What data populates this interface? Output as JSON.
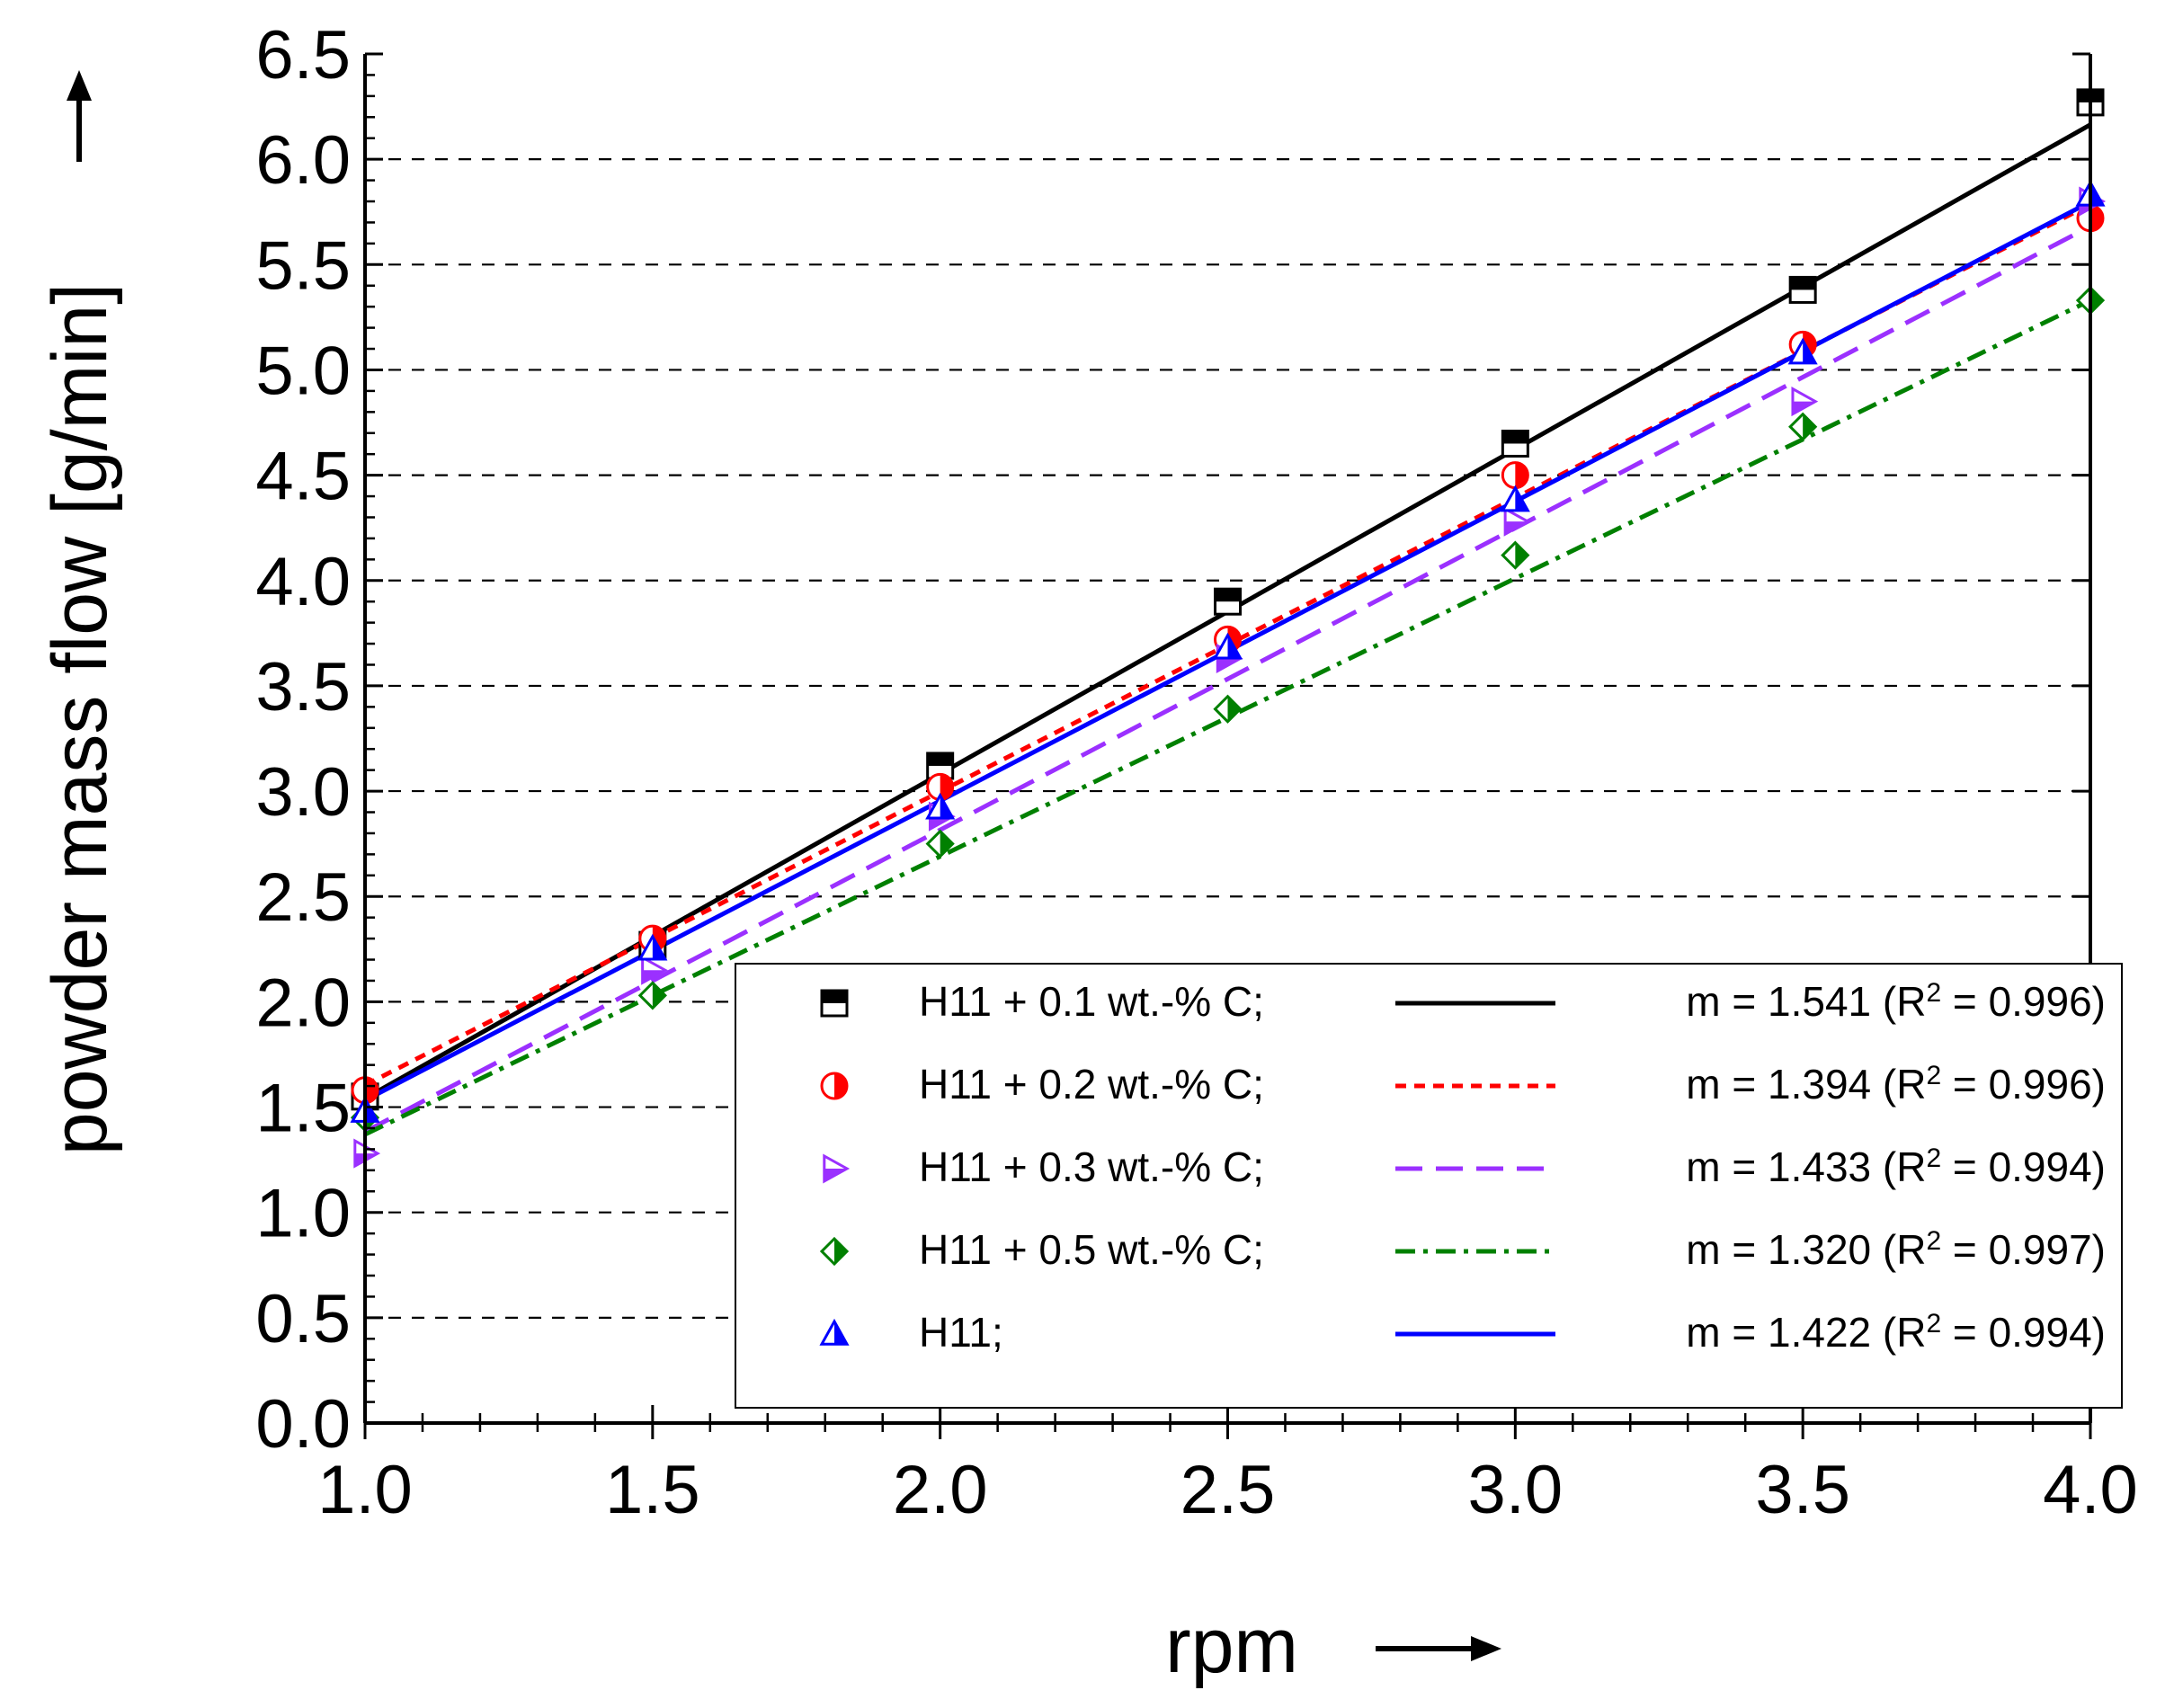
{
  "chart_data": {
    "type": "scatter",
    "xlabel": "rpm",
    "ylabel": "powder mass flow [g/min]",
    "xlim": [
      1.0,
      4.0
    ],
    "ylim": [
      0.0,
      6.5
    ],
    "xticks": [
      "1.0",
      "1.5",
      "2.0",
      "2.5",
      "3.0",
      "3.5",
      "4.0"
    ],
    "yticks": [
      "0.0",
      "0.5",
      "1.0",
      "1.5",
      "2.0",
      "2.5",
      "3.0",
      "3.5",
      "4.0",
      "4.5",
      "5.0",
      "5.5",
      "6.0",
      "6.5"
    ],
    "grid": "horizontal dashed",
    "legend_position": "bottom-right",
    "series": [
      {
        "name": "H11 + 0.1 wt.-% C;",
        "marker": "square-top-filled",
        "line_style": "solid",
        "color": "#000000",
        "fit_label": "m = 1.541 (R",
        "r2_text": " = 0.996)",
        "fit": {
          "slope": 1.541,
          "intercept": 0.0
        },
        "x": [
          1.0,
          1.5,
          2.0,
          2.5,
          3.0,
          3.5,
          4.0
        ],
        "y": [
          1.55,
          2.27,
          3.12,
          3.9,
          4.65,
          5.38,
          6.27
        ]
      },
      {
        "name": "H11 + 0.2 wt.-% C;",
        "marker": "circle-right-filled",
        "line_style": "dashed-short",
        "color": "#ff0000",
        "fit_label": "m = 1.394 (R",
        "r2_text": " = 0.996)",
        "fit": {
          "slope": 1.394,
          "intercept": 0.21
        },
        "x": [
          1.0,
          1.5,
          2.0,
          2.5,
          3.0,
          3.5,
          4.0
        ],
        "y": [
          1.58,
          2.3,
          3.02,
          3.72,
          4.5,
          5.12,
          5.72
        ]
      },
      {
        "name": "H11 + 0.3 wt.-% C;",
        "marker": "triangle-right-filled",
        "line_style": "dashed-long",
        "color": "#9b30ff",
        "fit_label": "m = 1.433 (R",
        "r2_text": " = 0.994)",
        "fit": {
          "slope": 1.433,
          "intercept": -0.05
        },
        "x": [
          1.0,
          1.5,
          2.0,
          2.5,
          3.0,
          3.5,
          4.0
        ],
        "y": [
          1.28,
          2.15,
          2.88,
          3.63,
          4.28,
          4.85,
          5.8
        ]
      },
      {
        "name": "H11 +  0.5 wt.-% C;",
        "marker": "diamond-right-filled",
        "line_style": "dash-dot",
        "color": "#008000",
        "fit_label": "m = 1.320 (R",
        "r2_text": " = 0.997)",
        "fit": {
          "slope": 1.32,
          "intercept": 0.05
        },
        "x": [
          1.0,
          1.5,
          2.0,
          2.5,
          3.0,
          3.5,
          4.0
        ],
        "y": [
          1.45,
          2.03,
          2.75,
          3.39,
          4.12,
          4.73,
          5.33
        ]
      },
      {
        "name": "H11;",
        "marker": "triangle-up-right-filled",
        "line_style": "solid",
        "color": "#0000ff",
        "fit_label": "m = 1.422 (R",
        "r2_text": " = 0.994)",
        "fit": {
          "slope": 1.422,
          "intercept": 0.11
        },
        "x": [
          1.0,
          1.5,
          2.0,
          2.5,
          3.0,
          3.5,
          4.0
        ],
        "y": [
          1.48,
          2.25,
          2.92,
          3.68,
          4.38,
          5.08,
          5.83
        ]
      }
    ]
  }
}
